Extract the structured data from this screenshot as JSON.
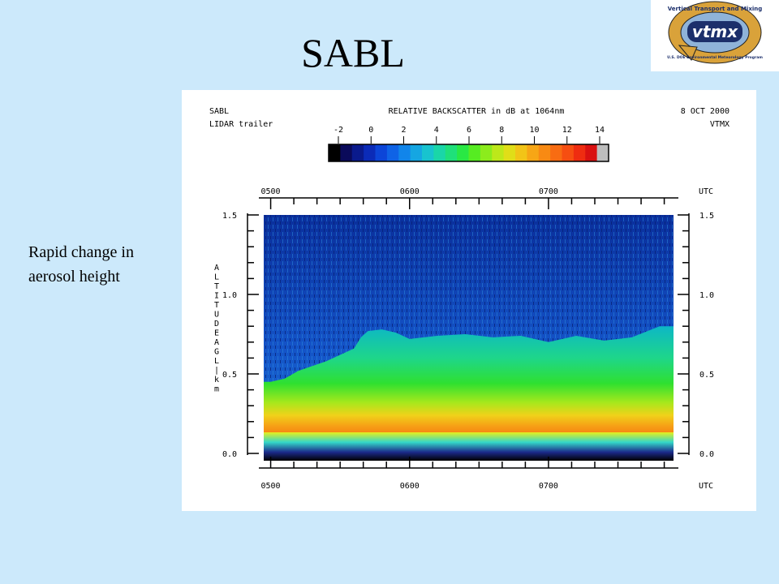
{
  "slide": {
    "title": "SABL",
    "annotation_line1": "Rapid change in",
    "annotation_line2": "aerosol height"
  },
  "logo": {
    "arc_top": "Vertical Transport and Mixing",
    "wordmark": "vtmx",
    "arc_bottom": "U.S. DOE Environmental Meteorology Program",
    "colors": {
      "ring": "#d9a23a",
      "inner": "#8fb3d9",
      "dark": "#1c2f6b"
    }
  },
  "chart_data": {
    "type": "heatmap",
    "header_left_1": "SABL",
    "header_left_2": "LIDAR trailer",
    "header_right_1": "8 OCT 2000",
    "header_right_2": "VTMX",
    "colorbar": {
      "title": "RELATIVE BACKSCATTER in dB at 1064nm",
      "ticks": [
        "-2",
        "0",
        "2",
        "4",
        "6",
        "8",
        "10",
        "12",
        "14"
      ],
      "range": [
        -2,
        14
      ]
    },
    "x_axis": {
      "ticks": [
        "0500",
        "0600",
        "0700"
      ],
      "units_label": "UTC",
      "range_hours_utc": [
        4.95,
        7.9
      ]
    },
    "y_axis": {
      "label": "ALTITUDE AGL | km",
      "ticks": [
        "0.0",
        "0.5",
        "1.0",
        "1.5"
      ],
      "range": [
        0.0,
        1.5
      ]
    },
    "aerosol_top_km": {
      "times_utc_hours": [
        5.0,
        5.1,
        5.2,
        5.3,
        5.4,
        5.5,
        5.6,
        5.65,
        5.7,
        5.8,
        5.9,
        6.0,
        6.2,
        6.4,
        6.6,
        6.8,
        7.0,
        7.2,
        7.4,
        7.6,
        7.8
      ],
      "heights_km": [
        0.45,
        0.47,
        0.52,
        0.55,
        0.58,
        0.62,
        0.66,
        0.73,
        0.77,
        0.78,
        0.76,
        0.72,
        0.74,
        0.75,
        0.73,
        0.74,
        0.7,
        0.74,
        0.71,
        0.73,
        0.8
      ]
    }
  }
}
